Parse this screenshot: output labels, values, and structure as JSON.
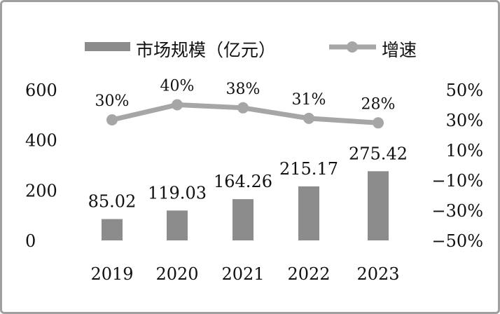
{
  "chart_data": {
    "type": "bar+line",
    "categories": [
      "2019",
      "2020",
      "2021",
      "2022",
      "2023"
    ],
    "series": [
      {
        "name": "市场规模（亿元）",
        "type": "bar",
        "axis": "left",
        "values": [
          85.02,
          119.03,
          164.26,
          215.17,
          275.42
        ],
        "labels": [
          "85.02",
          "119.03",
          "164.26",
          "215.17",
          "275.42"
        ],
        "color": "#8c8c8c"
      },
      {
        "name": "增速",
        "type": "line",
        "axis": "right",
        "values": [
          30,
          40,
          38,
          31,
          28
        ],
        "labels": [
          "30%",
          "40%",
          "38%",
          "31%",
          "28%"
        ],
        "color": "#a6a6a6"
      }
    ],
    "left_axis": {
      "ylim": [
        0,
        600
      ],
      "ticks": [
        "0",
        "200",
        "400",
        "600"
      ]
    },
    "right_axis": {
      "ylim": [
        -50,
        50
      ],
      "ticks": [
        "-50%",
        "-30%",
        "-10%",
        "10%",
        "30%",
        "50%"
      ]
    },
    "legend": {
      "position": "top",
      "items": [
        "市场规模（亿元）",
        "增速"
      ]
    },
    "grid": false
  }
}
